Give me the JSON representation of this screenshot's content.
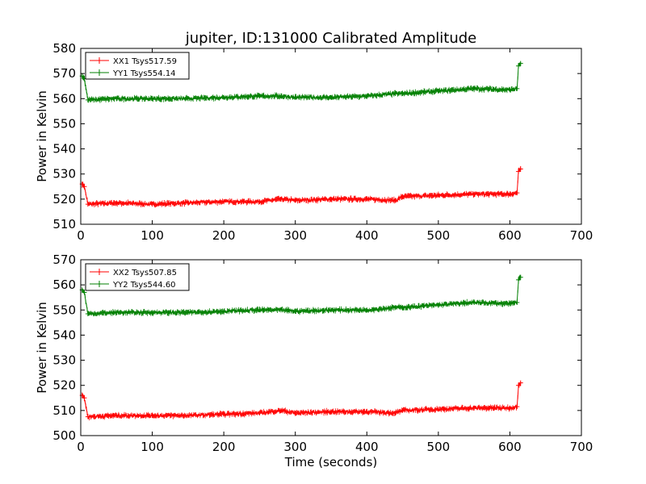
{
  "figure": {
    "title": "jupiter, ID:131000 Calibrated Amplitude",
    "xlabel": "Time (seconds)"
  },
  "colors": {
    "xx": "#ff0000",
    "yy": "#007f00"
  },
  "chart_data": [
    {
      "type": "line",
      "xlabel": "",
      "ylabel": "Power in Kelvin",
      "xlim": [
        0,
        700
      ],
      "ylim": [
        510,
        580
      ],
      "xticks": [
        0,
        100,
        200,
        300,
        400,
        500,
        600,
        700
      ],
      "yticks": [
        510,
        520,
        530,
        540,
        550,
        560,
        570,
        580
      ],
      "legend_position": "top-left",
      "grid": false,
      "series": [
        {
          "name": "XX1 Tsys517.59",
          "color": "#ff0000",
          "x": [
            2,
            5,
            10,
            50,
            100,
            150,
            200,
            250,
            280,
            300,
            350,
            400,
            440,
            450,
            500,
            550,
            600,
            610,
            612,
            615
          ],
          "y": [
            526,
            525,
            518,
            518.5,
            518,
            518.5,
            519,
            519,
            520,
            519.5,
            520,
            520,
            519.5,
            521,
            521.5,
            522,
            522,
            522.5,
            531,
            532
          ]
        },
        {
          "name": "YY1 Tsys554.14",
          "color": "#007f00",
          "x": [
            2,
            5,
            10,
            50,
            100,
            150,
            200,
            250,
            280,
            300,
            350,
            400,
            440,
            450,
            500,
            550,
            600,
            610,
            612,
            615
          ],
          "y": [
            569,
            568,
            559.5,
            560,
            560,
            560,
            560.5,
            561,
            561,
            560.5,
            560.5,
            561,
            562,
            562,
            563,
            564,
            563.5,
            564,
            573,
            574
          ]
        }
      ]
    },
    {
      "type": "line",
      "xlabel": "Time (seconds)",
      "ylabel": "Power in Kelvin",
      "xlim": [
        0,
        700
      ],
      "ylim": [
        500,
        570
      ],
      "xticks": [
        0,
        100,
        200,
        300,
        400,
        500,
        600,
        700
      ],
      "yticks": [
        500,
        510,
        520,
        530,
        540,
        550,
        560,
        570
      ],
      "legend_position": "top-left",
      "grid": false,
      "series": [
        {
          "name": "XX2 Tsys507.85",
          "color": "#ff0000",
          "x": [
            2,
            5,
            10,
            50,
            100,
            150,
            200,
            250,
            280,
            300,
            350,
            400,
            440,
            450,
            500,
            550,
            600,
            610,
            612,
            615
          ],
          "y": [
            516,
            515,
            507.5,
            508,
            508,
            508,
            508.5,
            509,
            510,
            509,
            509.5,
            509.5,
            509,
            510,
            510.5,
            511,
            511,
            511.5,
            520,
            521
          ]
        },
        {
          "name": "YY2 Tsys544.60",
          "color": "#007f00",
          "x": [
            2,
            5,
            10,
            50,
            100,
            150,
            200,
            250,
            280,
            300,
            350,
            400,
            440,
            450,
            500,
            550,
            600,
            610,
            612,
            615
          ],
          "y": [
            558,
            557,
            548.5,
            549,
            549,
            549,
            549.5,
            550,
            550,
            549.5,
            550,
            550,
            551,
            551,
            552,
            553,
            552.5,
            553,
            562,
            563
          ]
        }
      ]
    }
  ]
}
